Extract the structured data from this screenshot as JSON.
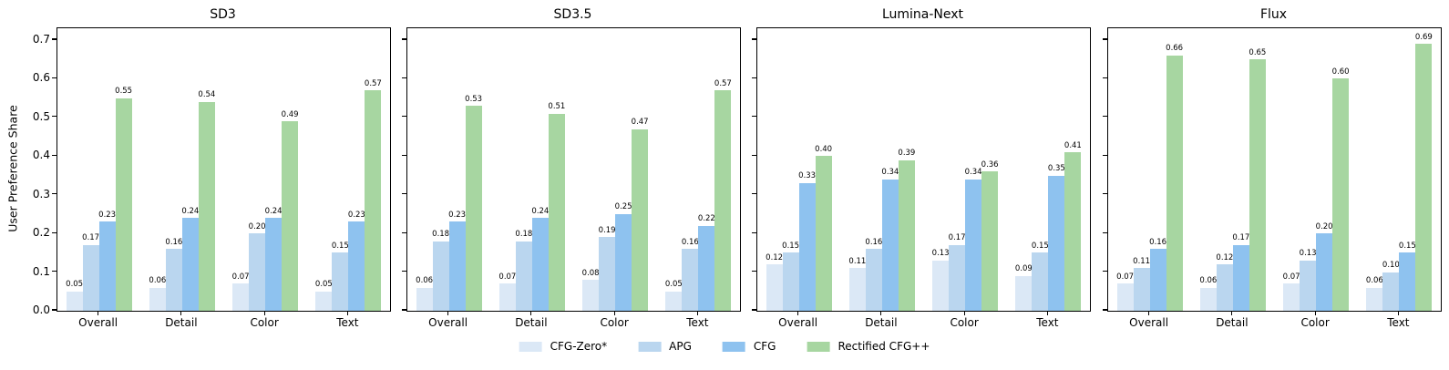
{
  "ylabel": "User Preference Share",
  "y_axis": {
    "ticks": [
      "0.0",
      "0.1",
      "0.2",
      "0.3",
      "0.4",
      "0.5",
      "0.6",
      "0.7"
    ],
    "min": 0,
    "display_max": 0.7306
  },
  "value_label_decimals": 2,
  "legend_position": "bottom-center",
  "chart_data": [
    {
      "type": "bar",
      "title": "SD3",
      "categories": [
        "Overall",
        "Detail",
        "Color",
        "Text"
      ],
      "series": [
        {
          "name": "CFG-Zero*",
          "color": "#dbe8f6",
          "values": [
            0.05,
            0.06,
            0.07,
            0.05
          ]
        },
        {
          "name": "APG",
          "color": "#bad6ef",
          "values": [
            0.17,
            0.16,
            0.2,
            0.15
          ]
        },
        {
          "name": "CFG",
          "color": "#8ec2ef",
          "values": [
            0.23,
            0.24,
            0.24,
            0.23
          ]
        },
        {
          "name": "Rectified CFG++",
          "color": "#a7d6a1",
          "values": [
            0.55,
            0.54,
            0.49,
            0.57
          ]
        }
      ],
      "ylim": [
        0,
        0.73
      ],
      "grid": false
    },
    {
      "type": "bar",
      "title": "SD3.5",
      "categories": [
        "Overall",
        "Detail",
        "Color",
        "Text"
      ],
      "series": [
        {
          "name": "CFG-Zero*",
          "color": "#dbe8f6",
          "values": [
            0.06,
            0.07,
            0.08,
            0.05
          ]
        },
        {
          "name": "APG",
          "color": "#bad6ef",
          "values": [
            0.18,
            0.18,
            0.19,
            0.16
          ]
        },
        {
          "name": "CFG",
          "color": "#8ec2ef",
          "values": [
            0.23,
            0.24,
            0.25,
            0.22
          ]
        },
        {
          "name": "Rectified CFG++",
          "color": "#a7d6a1",
          "values": [
            0.53,
            0.51,
            0.47,
            0.57
          ]
        }
      ],
      "ylim": [
        0,
        0.73
      ],
      "grid": false
    },
    {
      "type": "bar",
      "title": "Lumina-Next",
      "categories": [
        "Overall",
        "Detail",
        "Color",
        "Text"
      ],
      "series": [
        {
          "name": "CFG-Zero*",
          "color": "#dbe8f6",
          "values": [
            0.12,
            0.11,
            0.13,
            0.09
          ]
        },
        {
          "name": "APG",
          "color": "#bad6ef",
          "values": [
            0.15,
            0.16,
            0.17,
            0.15
          ]
        },
        {
          "name": "CFG",
          "color": "#8ec2ef",
          "values": [
            0.33,
            0.34,
            0.34,
            0.35
          ]
        },
        {
          "name": "Rectified CFG++",
          "color": "#a7d6a1",
          "values": [
            0.4,
            0.39,
            0.36,
            0.41
          ]
        }
      ],
      "ylim": [
        0,
        0.73
      ],
      "grid": false
    },
    {
      "type": "bar",
      "title": "Flux",
      "categories": [
        "Overall",
        "Detail",
        "Color",
        "Text"
      ],
      "series": [
        {
          "name": "CFG-Zero*",
          "color": "#dbe8f6",
          "values": [
            0.07,
            0.06,
            0.07,
            0.06
          ]
        },
        {
          "name": "APG",
          "color": "#bad6ef",
          "values": [
            0.11,
            0.12,
            0.13,
            0.1
          ]
        },
        {
          "name": "CFG",
          "color": "#8ec2ef",
          "values": [
            0.16,
            0.17,
            0.2,
            0.15
          ]
        },
        {
          "name": "Rectified CFG++",
          "color": "#a7d6a1",
          "values": [
            0.66,
            0.65,
            0.6,
            0.69
          ]
        }
      ],
      "ylim": [
        0,
        0.73
      ],
      "grid": false
    }
  ]
}
